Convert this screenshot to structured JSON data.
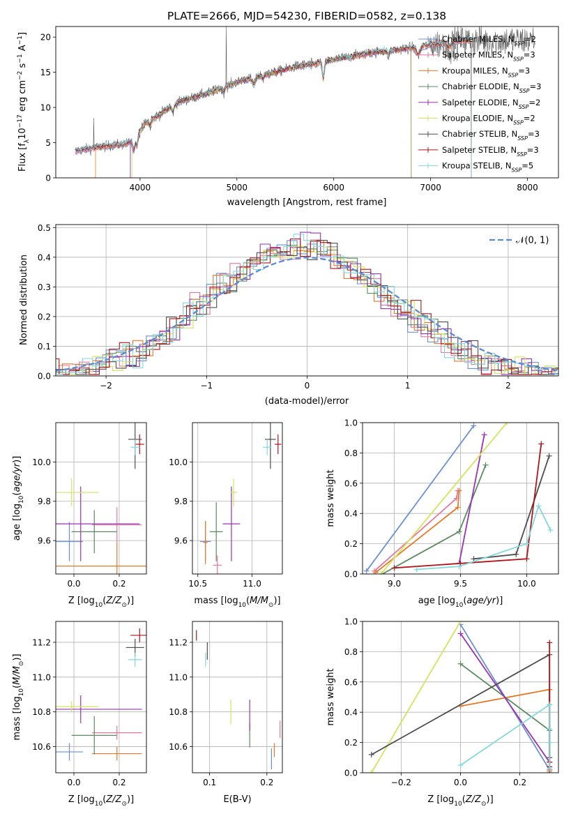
{
  "figure": {
    "title": "PLATE=2666, MJD=54230, FIBERID=0582, z=0.138"
  },
  "colors": {
    "chabrier_miles": "#6a8fd8",
    "salpeter_miles": "#e7779b",
    "kroupa_miles": "#e87824",
    "chabrier_elodie": "#5a8a5f",
    "salpeter_elodie": "#9b31b5",
    "kroupa_elodie": "#d5e45a",
    "chabrier_stelib": "#4d4d4d",
    "salpeter_stelib": "#b31319",
    "kroupa_stelib": "#82d8dc",
    "normal": "#5a8ad6",
    "grid": "#b0b0b0",
    "spectrum": "#555555"
  },
  "chart_data": [
    {
      "id": "spectrum",
      "type": "line",
      "title": "PLATE=2666, MJD=54230, FIBERID=0582, z=0.138",
      "xlabel": "wavelength [Angstrom, rest frame]",
      "ylabel": "Flux [fλ10⁻¹⁷ erg cm⁻² s⁻¹ A⁻¹]",
      "xlim": [
        3130,
        8320
      ],
      "ylim": [
        0,
        21.5
      ],
      "xticks": [
        4000,
        5000,
        6000,
        7000,
        8000
      ],
      "yticks": [
        0,
        5,
        10,
        15,
        20
      ],
      "grid": false,
      "legend_position": "top-right",
      "legend": [
        {
          "label": "Chabrier MILES, N_SSP=2",
          "color_key": "chabrier_miles"
        },
        {
          "label": "Salpeter MILES, N_SSP=3",
          "color_key": "salpeter_miles"
        },
        {
          "label": "Kroupa MILES, N_SSP=3",
          "color_key": "kroupa_miles"
        },
        {
          "label": "Chabrier ELODIE, N_SSP=3",
          "color_key": "chabrier_elodie"
        },
        {
          "label": "Salpeter ELODIE, N_SSP=2",
          "color_key": "salpeter_elodie"
        },
        {
          "label": "Kroupa ELODIE, N_SSP=2",
          "color_key": "kroupa_elodie"
        },
        {
          "label": "Chabrier STELIB, N_SSP=3",
          "color_key": "chabrier_stelib"
        },
        {
          "label": "Salpeter STELIB, N_SSP=3",
          "color_key": "salpeter_stelib"
        },
        {
          "label": "Kroupa STELIB, N_SSP=5",
          "color_key": "kroupa_stelib"
        }
      ],
      "continuum": [
        [
          3330,
          3.8
        ],
        [
          3500,
          4.2
        ],
        [
          3700,
          4.6
        ],
        [
          3850,
          4.8
        ],
        [
          3950,
          5.5
        ],
        [
          4050,
          7.8
        ],
        [
          4200,
          9.0
        ],
        [
          4400,
          10.8
        ],
        [
          4600,
          11.6
        ],
        [
          4800,
          12.5
        ],
        [
          5000,
          13.6
        ],
        [
          5200,
          14.4
        ],
        [
          5400,
          15.0
        ],
        [
          5600,
          15.8
        ],
        [
          5800,
          16.2
        ],
        [
          6000,
          16.8
        ],
        [
          6200,
          17.3
        ],
        [
          6400,
          17.8
        ],
        [
          6600,
          18.1
        ],
        [
          6800,
          18.5
        ],
        [
          7000,
          18.9
        ],
        [
          7200,
          19.3
        ],
        [
          7350,
          19.5
        ]
      ],
      "model_range": {
        "chabrier_miles": [
          3330,
          7420
        ],
        "salpeter_miles": [
          3330,
          7420
        ],
        "kroupa_miles": [
          3540,
          7420
        ],
        "chabrier_elodie": [
          3900,
          6800
        ],
        "salpeter_elodie": [
          3900,
          6800
        ],
        "kroupa_elodie": [
          3920,
          6800
        ],
        "chabrier_stelib": [
          3330,
          7420
        ],
        "salpeter_stelib": [
          3330,
          7420
        ],
        "kroupa_stelib": [
          3330,
          7420
        ]
      }
    },
    {
      "id": "residuals",
      "type": "histogram",
      "xlabel": "(data-model)/error",
      "ylabel": "Normed distribution",
      "xlim": [
        -2.5,
        2.5
      ],
      "ylim": [
        0,
        0.51
      ],
      "xticks": [
        -2,
        -1,
        0,
        1,
        2
      ],
      "yticks": [
        0.0,
        0.1,
        0.2,
        0.3,
        0.4,
        0.5
      ],
      "grid": true,
      "legend_position": "top-right",
      "legend": [
        {
          "label": "𝒩(0, 1)",
          "color_key": "normal"
        }
      ],
      "bin_width": 0.1
    },
    {
      "id": "age_vs_Z",
      "type": "errorbar",
      "xlabel": "Z [log10(Z/Z☉)]",
      "ylabel": "age [log10(age/yr)]",
      "xlim": [
        -0.08,
        0.32
      ],
      "ylim": [
        9.43,
        10.2
      ],
      "xticks": [
        0.0,
        0.2
      ],
      "yticks": [
        9.6,
        9.8,
        10.0
      ],
      "grid": true,
      "points": [
        {
          "key": "chabrier_miles",
          "x": -0.02,
          "y": 9.595,
          "xerr": 0.06,
          "yerr": 0.1
        },
        {
          "key": "salpeter_miles",
          "x": 0.19,
          "y": 9.68,
          "xerr": 0.11,
          "yerr": 0.09
        },
        {
          "key": "kroupa_miles",
          "x": 0.19,
          "y": 9.47,
          "xerr": 0.28,
          "yerr": 0.12
        },
        {
          "key": "chabrier_elodie",
          "x": 0.09,
          "y": 9.645,
          "xerr": 0.1,
          "yerr": 0.11
        },
        {
          "key": "salpeter_elodie",
          "x": 0.03,
          "y": 9.685,
          "xerr": 0.26,
          "yerr": 0.19
        },
        {
          "key": "kroupa_elodie",
          "x": -0.01,
          "y": 9.845,
          "xerr": 0.12,
          "yerr": 0.07
        },
        {
          "key": "chabrier_stelib",
          "x": 0.27,
          "y": 10.115,
          "xerr": 0.03,
          "yerr": 0.15
        },
        {
          "key": "salpeter_stelib",
          "x": 0.29,
          "y": 10.09,
          "xerr": 0.02,
          "yerr": 0.05
        },
        {
          "key": "kroupa_stelib",
          "x": 0.27,
          "y": 10.075,
          "xerr": 0.02,
          "yerr": 0.04
        }
      ]
    },
    {
      "id": "age_vs_mass",
      "type": "errorbar",
      "xlabel": "mass [log10(M/M☉)]",
      "ylabel": "",
      "xlim": [
        10.45,
        11.28
      ],
      "ylim": [
        9.43,
        10.2
      ],
      "xticks": [
        10.5,
        11.0
      ],
      "yticks": [
        9.6,
        9.8,
        10.0
      ],
      "grid": true,
      "points": [
        {
          "key": "chabrier_miles",
          "x": 10.57,
          "y": 9.595,
          "xerr": 0.05,
          "yerr": 0.1
        },
        {
          "key": "salpeter_miles",
          "x": 10.68,
          "y": 9.475,
          "xerr": 0.04,
          "yerr": 0.05
        },
        {
          "key": "kroupa_miles",
          "x": 10.57,
          "y": 9.59,
          "xerr": 0.02,
          "yerr": 0.11
        },
        {
          "key": "chabrier_elodie",
          "x": 10.67,
          "y": 9.645,
          "xerr": 0.06,
          "yerr": 0.15
        },
        {
          "key": "salpeter_elodie",
          "x": 10.81,
          "y": 9.685,
          "xerr": 0.08,
          "yerr": 0.19
        },
        {
          "key": "kroupa_elodie",
          "x": 10.83,
          "y": 9.845,
          "xerr": 0.03,
          "yerr": 0.07
        },
        {
          "key": "chabrier_stelib",
          "x": 11.17,
          "y": 10.115,
          "xerr": 0.05,
          "yerr": 0.15
        },
        {
          "key": "salpeter_stelib",
          "x": 11.24,
          "y": 10.09,
          "xerr": 0.03,
          "yerr": 0.05
        },
        {
          "key": "kroupa_stelib",
          "x": 11.14,
          "y": 10.075,
          "xerr": 0.04,
          "yerr": 0.04
        }
      ]
    },
    {
      "id": "weight_vs_age",
      "type": "line",
      "xlabel": "age [log10(age/yr)]",
      "ylabel": "mass weight",
      "xlim": [
        8.76,
        10.24
      ],
      "ylim": [
        0,
        1
      ],
      "xticks": [
        9.0,
        9.5,
        10.0
      ],
      "yticks": [
        0.0,
        0.2,
        0.4,
        0.6,
        0.8,
        1.0
      ],
      "grid": true,
      "series": [
        {
          "key": "chabrier_miles",
          "x": [
            8.79,
            9.6
          ],
          "y": [
            0.02,
            0.98
          ]
        },
        {
          "key": "salpeter_miles",
          "x": [
            8.85,
            9.47,
            9.48
          ],
          "y": [
            0.02,
            0.5,
            0.55
          ]
        },
        {
          "key": "kroupa_miles",
          "x": [
            8.86,
            9.48,
            9.49
          ],
          "y": [
            0.01,
            0.44,
            0.55
          ]
        },
        {
          "key": "chabrier_elodie",
          "x": [
            8.91,
            9.49,
            9.69
          ],
          "y": [
            0.0,
            0.28,
            0.72
          ]
        },
        {
          "key": "salpeter_elodie",
          "x": [
            9.49,
            9.68
          ],
          "y": [
            0.07,
            0.92
          ]
        },
        {
          "key": "kroupa_elodie",
          "x": [
            8.9,
            9.85
          ],
          "y": [
            0.0,
            1.0
          ]
        },
        {
          "key": "chabrier_stelib",
          "x": [
            9.6,
            9.92,
            10.17
          ],
          "y": [
            0.1,
            0.13,
            0.78
          ]
        },
        {
          "key": "salpeter_stelib",
          "x": [
            9.0,
            9.5,
            10.0,
            10.11
          ],
          "y": [
            0.04,
            0.07,
            0.1,
            0.86
          ]
        },
        {
          "key": "kroupa_stelib",
          "x": [
            9.17,
            9.49,
            10.0,
            10.09,
            10.18
          ],
          "y": [
            0.03,
            0.05,
            0.2,
            0.45,
            0.29
          ]
        }
      ]
    },
    {
      "id": "mass_vs_Z",
      "type": "errorbar",
      "xlabel": "Z [log10(Z/Z☉)]",
      "ylabel": "mass [log10(M/M☉)]",
      "xlim": [
        -0.08,
        0.32
      ],
      "ylim": [
        10.45,
        11.32
      ],
      "xticks": [
        0.0,
        0.2
      ],
      "yticks": [
        10.6,
        10.8,
        11.0,
        11.2
      ],
      "grid": true,
      "points": [
        {
          "key": "chabrier_miles",
          "x": -0.02,
          "y": 10.57,
          "xerr": 0.06,
          "yerr": 0.05
        },
        {
          "key": "salpeter_miles",
          "x": 0.19,
          "y": 10.68,
          "xerr": 0.11,
          "yerr": 0.04
        },
        {
          "key": "kroupa_miles",
          "x": 0.19,
          "y": 10.56,
          "xerr": 0.11,
          "yerr": 0.04
        },
        {
          "key": "chabrier_elodie",
          "x": 0.09,
          "y": 10.665,
          "xerr": 0.1,
          "yerr": 0.11
        },
        {
          "key": "salpeter_elodie",
          "x": 0.03,
          "y": 10.815,
          "xerr": 0.27,
          "yerr": 0.08
        },
        {
          "key": "kroupa_elodie",
          "x": -0.01,
          "y": 10.83,
          "xerr": 0.12,
          "yerr": 0.03
        },
        {
          "key": "chabrier_stelib",
          "x": 0.27,
          "y": 11.17,
          "xerr": 0.04,
          "yerr": 0.05
        },
        {
          "key": "salpeter_stelib",
          "x": 0.29,
          "y": 11.24,
          "xerr": 0.04,
          "yerr": 0.04
        },
        {
          "key": "kroupa_stelib",
          "x": 0.27,
          "y": 11.1,
          "xerr": 0.03,
          "yerr": 0.04
        }
      ]
    },
    {
      "id": "mass_vs_ebv",
      "type": "errorbar",
      "xlabel": "E(B-V)",
      "ylabel": "",
      "xlim": [
        0.07,
        0.227
      ],
      "ylim": [
        10.45,
        11.32
      ],
      "xticks": [
        0.1,
        0.2
      ],
      "yticks": [
        10.6,
        10.8,
        11.0,
        11.2
      ],
      "grid": true,
      "points": [
        {
          "key": "chabrier_miles",
          "x": 0.208,
          "y": 10.53,
          "xerr": 0,
          "yerr": 0.06
        },
        {
          "key": "salpeter_miles",
          "x": 0.223,
          "y": 10.7,
          "xerr": 0,
          "yerr": 0.05
        },
        {
          "key": "kroupa_miles",
          "x": 0.213,
          "y": 10.58,
          "xerr": 0,
          "yerr": 0.04
        },
        {
          "key": "chabrier_elodie",
          "x": 0.17,
          "y": 10.665,
          "xerr": 0,
          "yerr": 0.07
        },
        {
          "key": "salpeter_elodie",
          "x": 0.17,
          "y": 10.78,
          "xerr": 0,
          "yerr": 0.09
        },
        {
          "key": "kroupa_elodie",
          "x": 0.137,
          "y": 10.8,
          "xerr": 0,
          "yerr": 0.07
        },
        {
          "key": "chabrier_stelib",
          "x": 0.096,
          "y": 11.15,
          "xerr": 0,
          "yerr": 0.05
        },
        {
          "key": "salpeter_stelib",
          "x": 0.077,
          "y": 11.24,
          "xerr": 0,
          "yerr": 0.03
        },
        {
          "key": "kroupa_stelib",
          "x": 0.093,
          "y": 11.1,
          "xerr": 0,
          "yerr": 0.04
        }
      ]
    },
    {
      "id": "weight_vs_Z",
      "type": "line",
      "xlabel": "Z [log10(Z/Z☉)]",
      "ylabel": "mass weight",
      "xlim": [
        -0.33,
        0.33
      ],
      "ylim": [
        0,
        1
      ],
      "xticks": [
        -0.2,
        0.0,
        0.2
      ],
      "yticks": [
        0.0,
        0.2,
        0.4,
        0.6,
        0.8,
        1.0
      ],
      "grid": true,
      "series": [
        {
          "key": "chabrier_miles",
          "x": [
            0.0,
            0.3
          ],
          "y": [
            0.98,
            0.02
          ]
        },
        {
          "key": "salpeter_miles",
          "x": [
            0.3,
            0.3,
            0.3
          ],
          "y": [
            0.02,
            0.45,
            0.55
          ]
        },
        {
          "key": "kroupa_miles",
          "x": [
            0.0,
            0.3,
            0.3
          ],
          "y": [
            0.44,
            0.55,
            0.01
          ]
        },
        {
          "key": "chabrier_elodie",
          "x": [
            0.0,
            0.3,
            0.3
          ],
          "y": [
            0.72,
            0.28,
            0.0
          ]
        },
        {
          "key": "salpeter_elodie",
          "x": [
            0.0,
            0.3
          ],
          "y": [
            0.92,
            0.07
          ]
        },
        {
          "key": "kroupa_elodie",
          "x": [
            -0.3,
            0.0
          ],
          "y": [
            0.0,
            1.0
          ]
        },
        {
          "key": "chabrier_stelib",
          "x": [
            -0.3,
            0.3,
            0.3
          ],
          "y": [
            0.12,
            0.78,
            0.1
          ]
        },
        {
          "key": "salpeter_stelib",
          "x": [
            0.3,
            0.3,
            0.3
          ],
          "y": [
            0.86,
            0.07,
            0.04
          ]
        },
        {
          "key": "kroupa_stelib",
          "x": [
            0.0,
            0.3,
            0.3,
            0.3,
            0.3
          ],
          "y": [
            0.05,
            0.45,
            0.29,
            0.2,
            0.03
          ]
        }
      ]
    }
  ]
}
